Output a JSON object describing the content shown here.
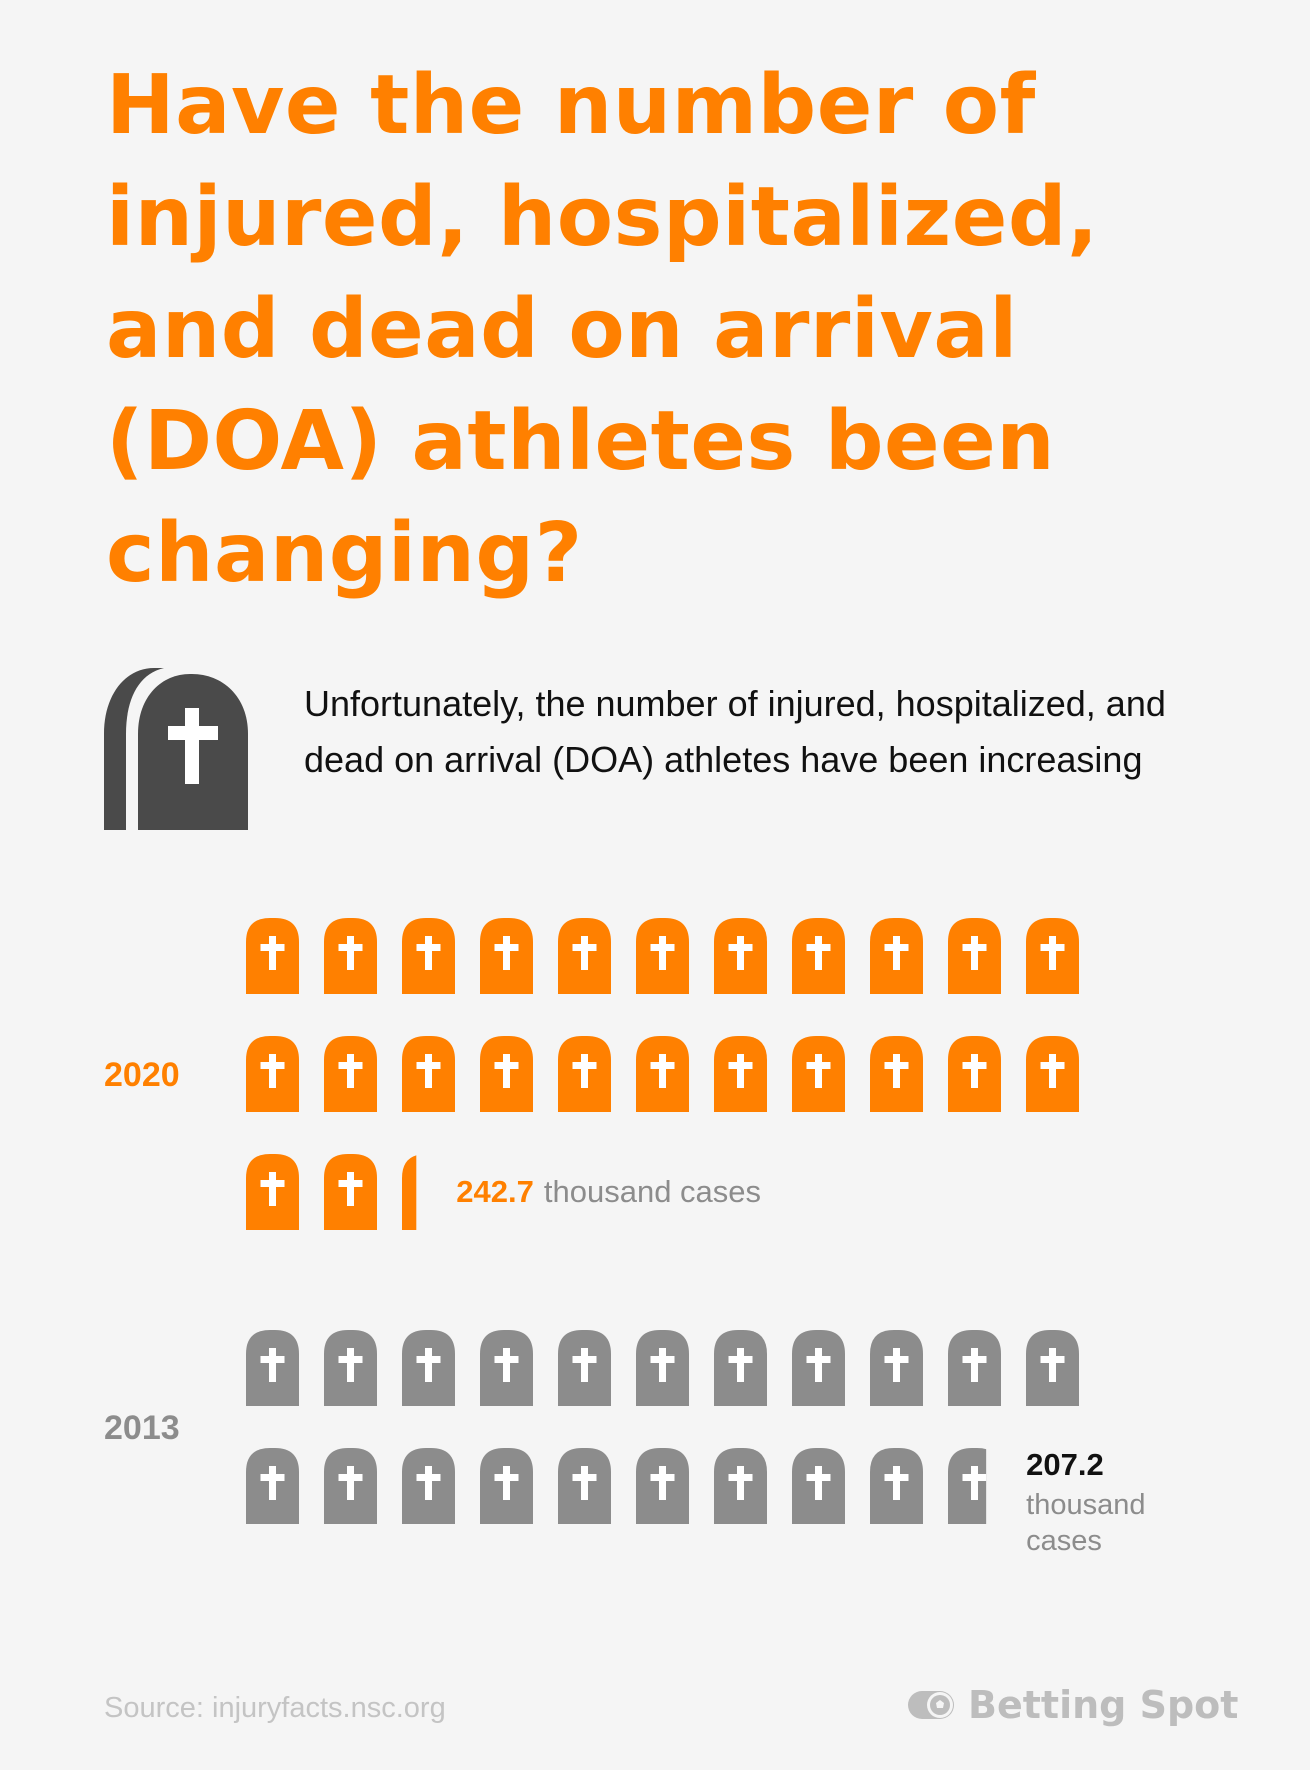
{
  "title": "Have the number of injured, hospitalized, and dead on arrival (DOA) athletes been changing?",
  "subtitle": "Unfortunately, the number of injured, hospitalized, and dead on arrival (DOA) athletes have been increasing",
  "icons": {
    "hero": "tombstone-icon",
    "unit": "tombstone-icon",
    "brand": "soccer-ball-icon"
  },
  "colors": {
    "accent": "#ff8000",
    "dark": "#4a4a4a",
    "muted": "#8c8c8c",
    "background": "#f5f5f5"
  },
  "chart_data": {
    "type": "pictograph",
    "icons_per_row": 11,
    "units_per_icon": 10,
    "unit_label": "thousand cases",
    "series": [
      {
        "year": "2020",
        "value": 242.7,
        "value_text": "242.7",
        "unit_text": "thousand cases",
        "color": "#ff8000",
        "label_color": "#ff8000"
      },
      {
        "year": "2013",
        "value": 207.2,
        "value_text": "207.2",
        "unit_text": "thousand cases",
        "color": "#8c8c8c",
        "label_color": "#8c8c8c"
      }
    ]
  },
  "footer": {
    "source": "Source:  injuryfacts.nsc.org",
    "brand": "Betting Spot"
  }
}
